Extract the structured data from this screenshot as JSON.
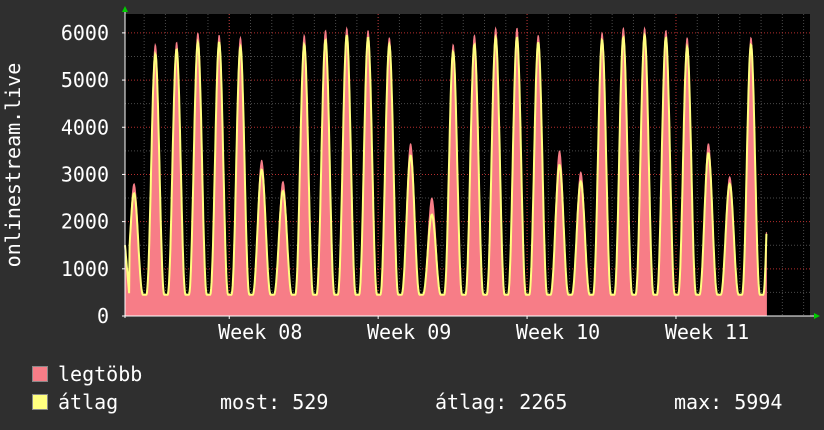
{
  "chart_data": {
    "type": "line",
    "ylabel": "onlinestream.live",
    "xlabel": "",
    "ylim": [
      0,
      6400
    ],
    "yticks": [
      0,
      1000,
      2000,
      3000,
      4000,
      5000,
      6000
    ],
    "xlim": [
      7.3,
      11.9
    ],
    "xticks": [
      {
        "value": 8,
        "label": "Week 08"
      },
      {
        "value": 9,
        "label": "Week 09"
      },
      {
        "value": 10,
        "label": "Week 10"
      },
      {
        "value": 11,
        "label": "Week 11"
      }
    ],
    "grid": true,
    "background": "#000000",
    "series": [
      {
        "name": "legtöbb",
        "color": "#f77d87",
        "style": "area",
        "peaks": [
          2800,
          5750,
          5800,
          6000,
          5950,
          5900,
          3300,
          2850,
          5950,
          6050,
          6100,
          6050,
          5900,
          3650,
          2500,
          5750,
          5950,
          6100,
          6100,
          5950,
          3500,
          3050,
          6000,
          6100,
          6100,
          6050,
          5900,
          3650,
          2950,
          5900
        ]
      },
      {
        "name": "átlag",
        "color": "#ffff80",
        "style": "line",
        "peaks": [
          2600,
          5550,
          5650,
          5800,
          5800,
          5700,
          3100,
          2650,
          5750,
          5850,
          5950,
          5900,
          5750,
          3400,
          2150,
          5600,
          5750,
          5900,
          5900,
          5800,
          3200,
          2850,
          5850,
          5900,
          5950,
          5900,
          5700,
          3450,
          2800,
          5750
        ]
      }
    ],
    "start_value": 1500,
    "trough_value": 450,
    "days_per_week": 7
  },
  "legend": {
    "max_label": "legtöbb",
    "avg_label": "átlag",
    "max_color": "#f77d87",
    "avg_color": "#ffff80"
  },
  "stats": {
    "now": "most: 529",
    "average": "átlag: 2265",
    "maximum": "max: 5994"
  }
}
